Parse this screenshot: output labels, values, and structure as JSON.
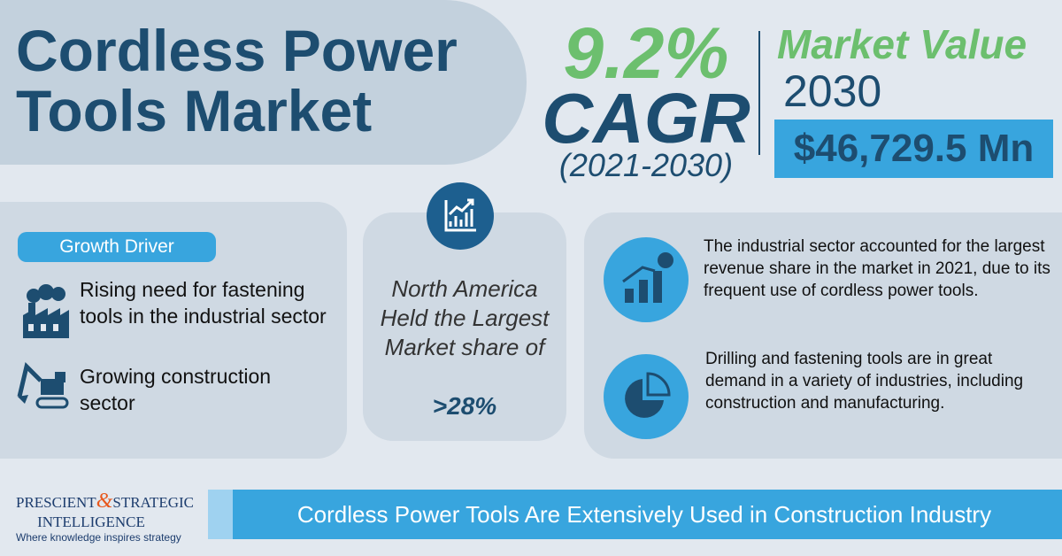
{
  "header": {
    "title_lines": [
      "Cordless Power",
      "Tools Market"
    ]
  },
  "cagr": {
    "value": "9.2%",
    "label": "CAGR",
    "period": "(2021-2030)"
  },
  "market_value": {
    "label": "Market Value",
    "year": "2030",
    "amount": "$46,729.5 Mn"
  },
  "growth_driver": {
    "heading": "Growth Driver",
    "items": [
      "Rising need for fastening tools in the industrial sector",
      "Growing construction sector"
    ]
  },
  "region": {
    "text": "North America Held the Largest Market share of",
    "highlight": ">28%"
  },
  "insights": [
    "The industrial sector accounted for the largest revenue share in the market in 2021, due to its frequent use of cordless power tools.",
    "Drilling and fastening tools are in great demand in a variety of industries, including construction and manufacturing."
  ],
  "footer": {
    "logo_left": "PRESCIENT",
    "logo_amp": "&",
    "logo_right": "STRATEGIC",
    "logo_bottom": "INTELLIGENCE",
    "tagline": "Where knowledge inspires strategy",
    "banner": "Cordless Power Tools Are Extensively Used in Construction Industry"
  }
}
